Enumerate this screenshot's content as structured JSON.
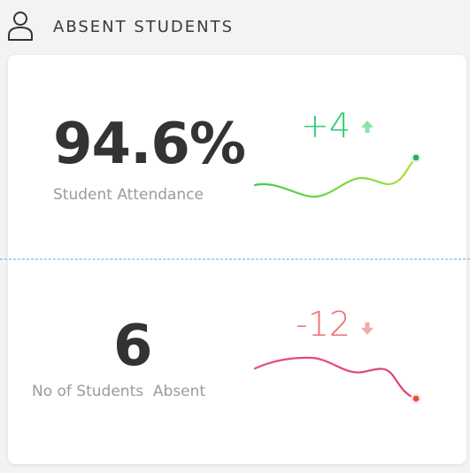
{
  "header": {
    "title": "ABSENT STUDENTS",
    "icon": "user-icon"
  },
  "metrics": [
    {
      "value": "94.6%",
      "label": "Student Attendance",
      "delta": "+4",
      "trend": "up",
      "trend_icon": "arrow-up-icon",
      "color": "#2ecc71",
      "spark_color_start": "#3fcf4f",
      "spark_color_end": "#a7e23a",
      "end_dot_color": "#27ae60"
    },
    {
      "value": "6",
      "label": "No of Students  Absent",
      "delta": "-12",
      "trend": "down",
      "trend_icon": "arrow-down-icon",
      "color": "#ee6e6e",
      "spark_color_start": "#e8507a",
      "spark_color_end": "#e23f6a",
      "end_dot_color": "#e74c3c"
    }
  ],
  "colors": {
    "divider": "#5bb8e6",
    "card": "#ffffff",
    "background": "#f3f3f4",
    "value_text": "#333333",
    "label_text": "#9a9aa2"
  }
}
